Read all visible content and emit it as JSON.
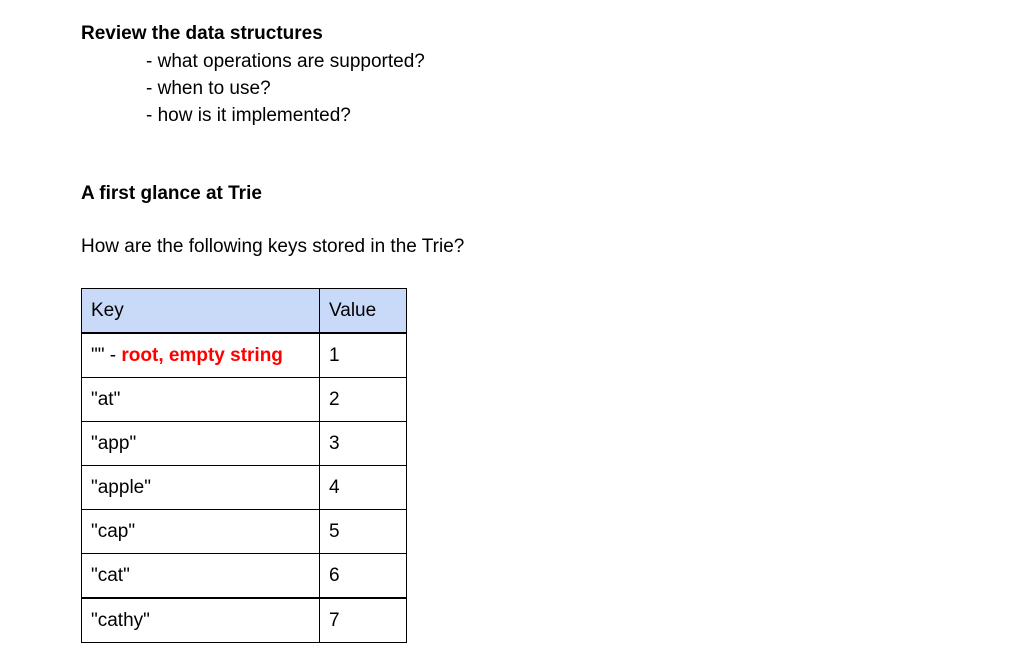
{
  "section1": {
    "heading": "Review the data structures",
    "bullets": [
      "- what operations are supported?",
      "- when to use?",
      "- how is it implemented?"
    ]
  },
  "section2": {
    "heading": "A first glance at Trie",
    "question": "How are the following keys stored in the Trie?"
  },
  "table": {
    "headers": {
      "key": "Key",
      "value": "Value"
    },
    "header_color": "#c9daf8",
    "note_color": "#ff0000",
    "rows": [
      {
        "key": "\"\"",
        "separator": " - ",
        "note": "root, empty string",
        "value": "1"
      },
      {
        "key": "\"at\"",
        "value": "2"
      },
      {
        "key": "\"app\"",
        "value": "3"
      },
      {
        "key": "\"apple\"",
        "value": "4"
      },
      {
        "key": "\"cap\"",
        "value": "5"
      },
      {
        "key": "\"cat\"",
        "value": "6"
      },
      {
        "key": "\"cathy\"",
        "value": "7"
      }
    ]
  }
}
